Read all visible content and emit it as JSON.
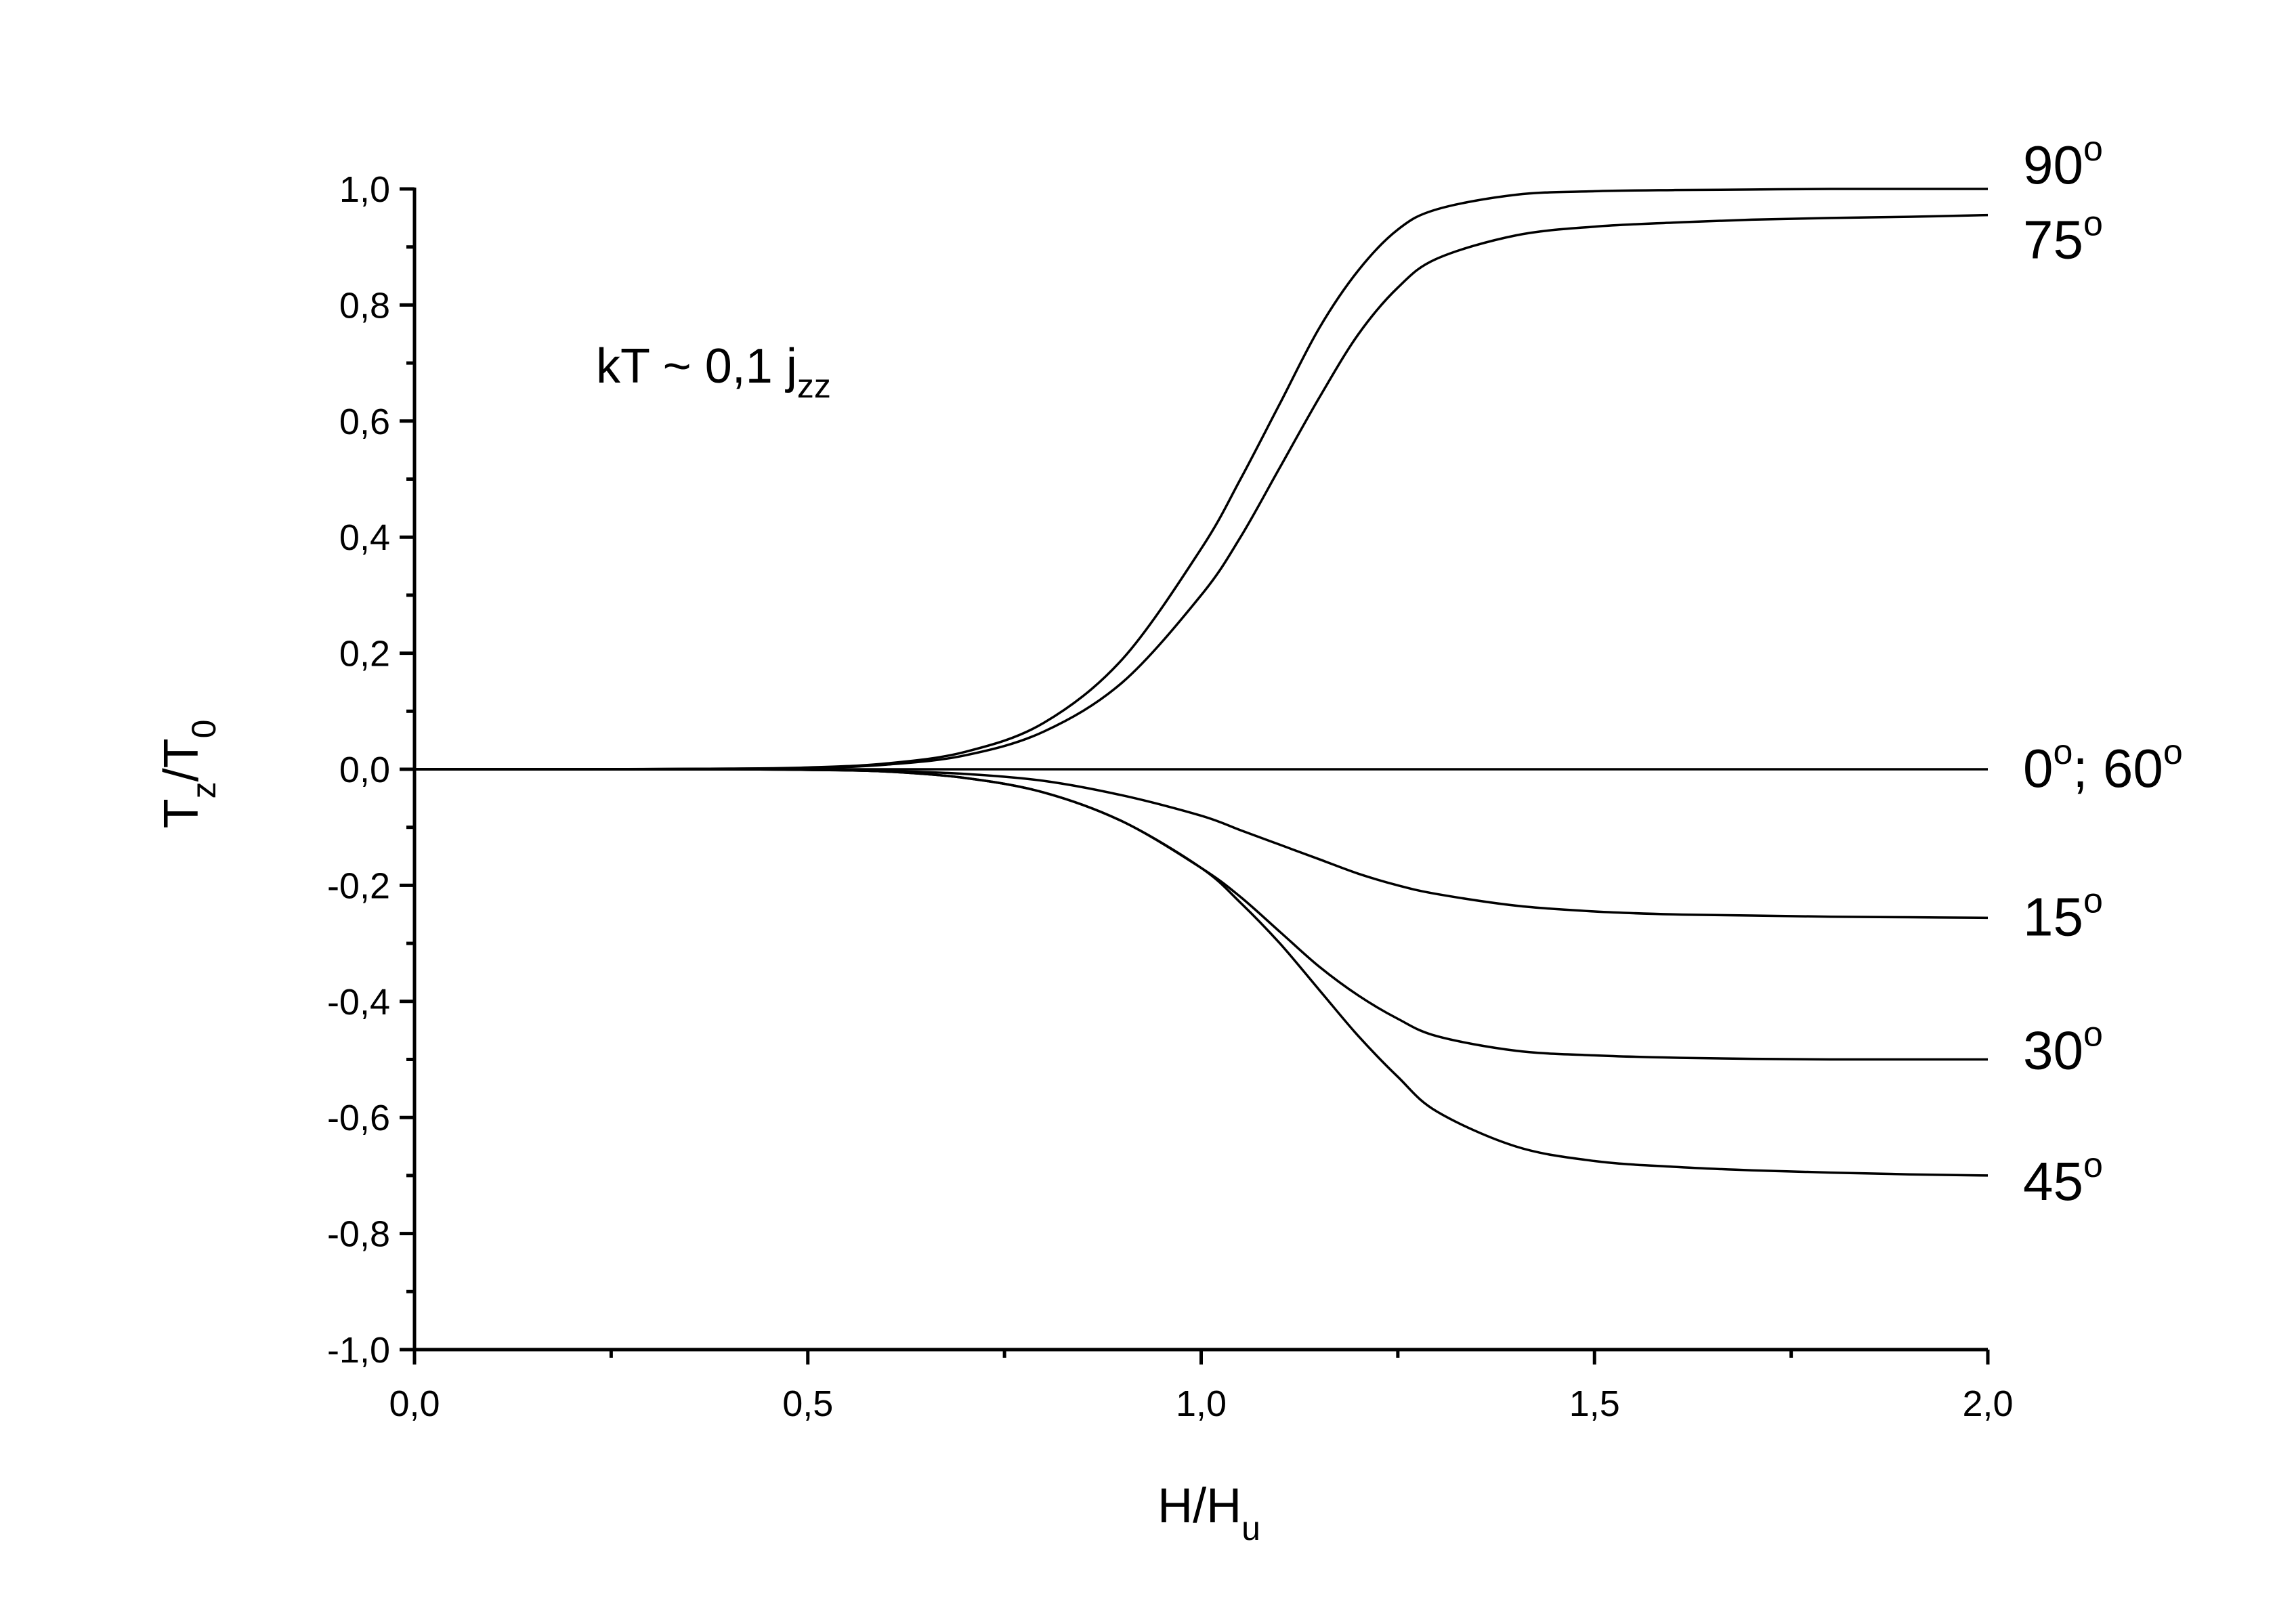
{
  "chart_data": {
    "type": "line",
    "xlabel": {
      "base": "H/H",
      "sub": "u"
    },
    "ylabel": {
      "pre": "T",
      "sub1": "z",
      "mid": "/T",
      "sub2": "0"
    },
    "xlim": [
      0,
      2
    ],
    "ylim": [
      -1,
      1
    ],
    "x_ticks": [
      0,
      0.5,
      1,
      1.5,
      2
    ],
    "x_tick_labels": [
      "0,0",
      "0,5",
      "1,0",
      "1,5",
      "2,0"
    ],
    "y_ticks": [
      1,
      0.8,
      0.6,
      0.4,
      0.2,
      0,
      -0.2,
      -0.4,
      -0.6,
      -0.8,
      -1
    ],
    "y_tick_labels": [
      "1,0",
      "0,8",
      "0,6",
      "0,4",
      "0,2",
      "0,0",
      "-0,2",
      "-0,4",
      "-0,6",
      "-0,8",
      "-1,0"
    ],
    "annotation": {
      "base": "kT ~ 0,1 j",
      "sub": "zz"
    },
    "grid": false,
    "x": [
      0,
      0.2,
      0.4,
      0.5,
      0.6,
      0.7,
      0.8,
      0.9,
      1.0,
      1.05,
      1.1,
      1.15,
      1.2,
      1.25,
      1.3,
      1.4,
      1.5,
      1.6,
      1.7,
      1.8,
      1.9,
      2.0
    ],
    "series": [
      {
        "name": "90°",
        "label": {
          "base": "90",
          "sup": "o"
        },
        "values": [
          0,
          0,
          0.001,
          0.003,
          0.01,
          0.03,
          0.08,
          0.19,
          0.38,
          0.5,
          0.63,
          0.76,
          0.86,
          0.93,
          0.965,
          0.99,
          0.996,
          0.998,
          0.999,
          1.0,
          1.0,
          1.0
        ]
      },
      {
        "name": "75°",
        "label": {
          "base": "75",
          "sup": "o"
        },
        "values": [
          0,
          0,
          0.001,
          0.002,
          0.008,
          0.024,
          0.065,
          0.15,
          0.3,
          0.4,
          0.52,
          0.64,
          0.75,
          0.83,
          0.88,
          0.92,
          0.935,
          0.942,
          0.947,
          0.95,
          0.952,
          0.955
        ]
      },
      {
        "name": "0°; 60°",
        "label": {
          "base": "0",
          "sup": "o",
          "rest": "; 60",
          "sup2": "o"
        },
        "values": [
          0,
          0,
          0,
          0,
          0,
          0,
          0,
          0,
          0,
          0,
          0,
          0,
          0,
          0,
          0,
          0,
          0,
          0,
          0,
          0,
          0,
          0
        ]
      },
      {
        "name": "15°",
        "label": {
          "base": "15",
          "sup": "o"
        },
        "values": [
          0,
          0,
          0,
          -0.001,
          -0.003,
          -0.008,
          -0.02,
          -0.045,
          -0.08,
          -0.105,
          -0.13,
          -0.155,
          -0.18,
          -0.2,
          -0.215,
          -0.235,
          -0.245,
          -0.25,
          -0.252,
          -0.254,
          -0.255,
          -0.256
        ]
      },
      {
        "name": "30°",
        "label": {
          "base": "30",
          "sup": "o"
        },
        "values": [
          0,
          0,
          0,
          -0.001,
          -0.004,
          -0.015,
          -0.04,
          -0.09,
          -0.17,
          -0.22,
          -0.28,
          -0.34,
          -0.39,
          -0.43,
          -0.46,
          -0.485,
          -0.493,
          -0.497,
          -0.499,
          -0.5,
          -0.5,
          -0.5
        ]
      },
      {
        "name": "45°",
        "label": {
          "base": "45",
          "sup": "o"
        },
        "values": [
          0,
          0,
          0,
          -0.001,
          -0.004,
          -0.015,
          -0.04,
          -0.09,
          -0.17,
          -0.23,
          -0.3,
          -0.38,
          -0.46,
          -0.53,
          -0.59,
          -0.65,
          -0.675,
          -0.685,
          -0.691,
          -0.695,
          -0.698,
          -0.7
        ]
      }
    ]
  }
}
